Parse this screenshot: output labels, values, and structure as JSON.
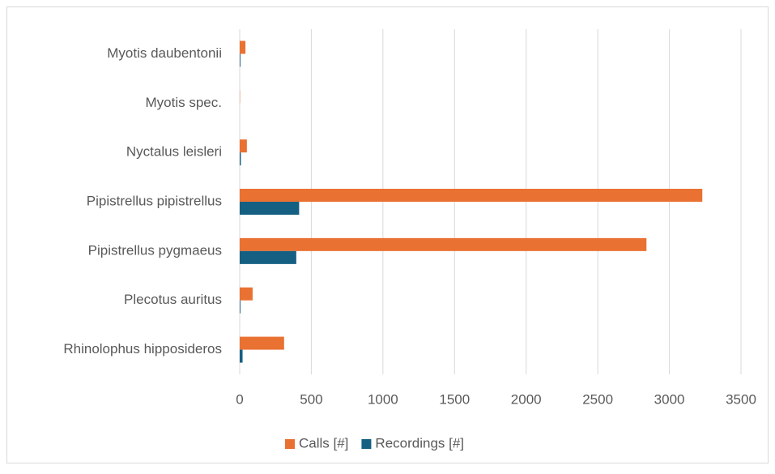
{
  "chart_data": {
    "type": "barh",
    "categories": [
      "Myotis daubentonii",
      "Myotis spec.",
      "Nyctalus leisleri",
      "Pipistrellus pipistrellus",
      "Pipistrellus pygmaeus",
      "Plecotus auritus",
      "Rhinolophus hipposideros"
    ],
    "series": [
      {
        "name": "Calls [#]",
        "color": "#E97132",
        "values": [
          40,
          2,
          50,
          3230,
          2840,
          90,
          310
        ]
      },
      {
        "name": "Recordings [#]",
        "color": "#156082",
        "values": [
          5,
          0,
          8,
          415,
          395,
          5,
          20
        ]
      }
    ],
    "xlim": [
      0,
      3500
    ],
    "xticks": [
      0,
      500,
      1000,
      1500,
      2000,
      2500,
      3000,
      3500
    ],
    "grid": true,
    "legend": "bottom"
  }
}
